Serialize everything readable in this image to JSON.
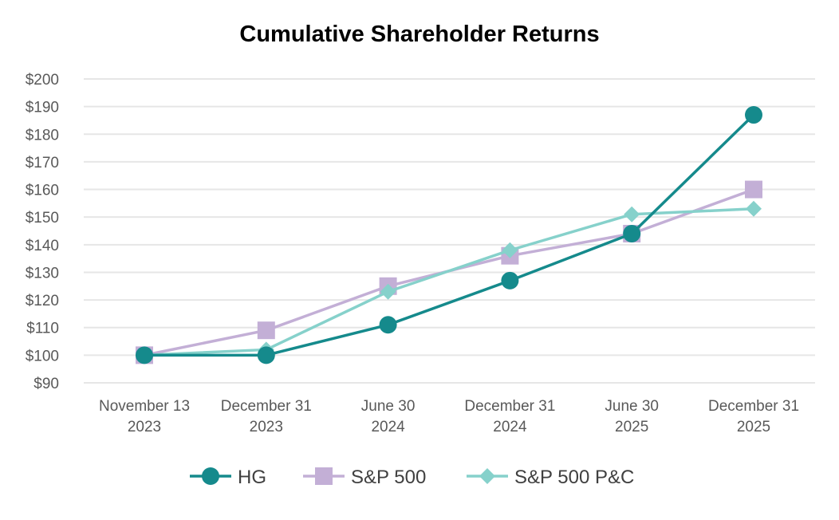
{
  "chart_data": {
    "type": "line",
    "title": "Cumulative Shareholder Returns",
    "xlabel": "",
    "ylabel": "",
    "ylim": [
      90,
      200
    ],
    "yticks": [
      "$90",
      "$100",
      "$110",
      "$120",
      "$130",
      "$140",
      "$150",
      "$160",
      "$170",
      "$180",
      "$190",
      "$200"
    ],
    "categories": [
      [
        "November 13",
        "2023"
      ],
      [
        "December 31",
        "2023"
      ],
      [
        "June 30",
        "2024"
      ],
      [
        "December 31",
        "2024"
      ],
      [
        "June 30",
        "2025"
      ],
      [
        "December 31",
        "2025"
      ]
    ],
    "series": [
      {
        "name": "HG",
        "color": "#158a8c",
        "marker": "circle",
        "values": [
          100,
          100,
          111,
          127,
          144,
          187
        ]
      },
      {
        "name": "S&P 500",
        "color": "#c3afd6",
        "marker": "square",
        "values": [
          100,
          109,
          125,
          136,
          144,
          160
        ]
      },
      {
        "name": "S&P 500 P&C",
        "color": "#86d1cb",
        "marker": "diamond",
        "values": [
          100,
          102,
          123,
          138,
          151,
          153
        ]
      }
    ],
    "grid": true,
    "legend": "bottom-center"
  }
}
